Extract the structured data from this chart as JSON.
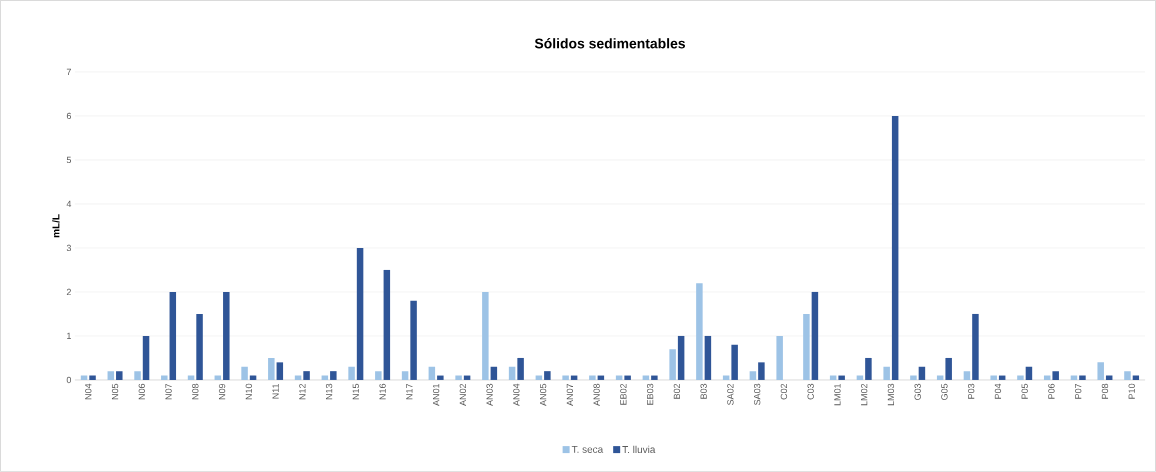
{
  "chart_data": {
    "type": "bar",
    "title": "Sólidos sedimentables",
    "ylabel": "mL/L",
    "categories": [
      "N04",
      "N05",
      "N06",
      "N07",
      "N08",
      "N09",
      "N10",
      "N11",
      "N12",
      "N13",
      "N15",
      "N16",
      "N17",
      "AN01",
      "AN02",
      "AN03",
      "AN04",
      "AN05",
      "AN07",
      "AN08",
      "EB02",
      "EB03",
      "B02",
      "B03",
      "SA02",
      "SA03",
      "C02",
      "C03",
      "LM01",
      "LM02",
      "LM03",
      "G03",
      "G05",
      "P03",
      "P04",
      "P05",
      "P06",
      "P07",
      "P08",
      "P10"
    ],
    "series": [
      {
        "name": "T. seca",
        "color": "#9dc3e6",
        "values": [
          0.1,
          0.2,
          0.2,
          0.1,
          0.1,
          0.1,
          0.3,
          0.5,
          0.1,
          0.1,
          0.3,
          0.2,
          0.2,
          0.3,
          0.1,
          2,
          0.3,
          0.1,
          0.1,
          0.1,
          0.1,
          0.1,
          0.7,
          2.2,
          0.1,
          0.2,
          1,
          1.5,
          0.1,
          0.1,
          0.3,
          0.1,
          0.1,
          0.2,
          0.1,
          0.1,
          0.1,
          0.1,
          0.4,
          0.2
        ]
      },
      {
        "name": "T. lluvia",
        "color": "#2f5597",
        "values": [
          0.1,
          0.2,
          1,
          2,
          1.5,
          2,
          0.1,
          0.4,
          0.2,
          0.2,
          3,
          2.5,
          1.8,
          0.1,
          0.1,
          0.3,
          0.5,
          0.2,
          0.1,
          0.1,
          0.1,
          0.1,
          1,
          1,
          0.8,
          0.4,
          null,
          2,
          0.1,
          0.5,
          6,
          0.3,
          0.5,
          1.5,
          0.1,
          0.3,
          0.2,
          0.1,
          0.1,
          0.1
        ]
      }
    ],
    "ylim": [
      0,
      7
    ],
    "yticks": [
      0,
      1,
      2,
      3,
      4,
      5,
      6,
      7
    ],
    "grid": "y",
    "legend": "bottom"
  }
}
